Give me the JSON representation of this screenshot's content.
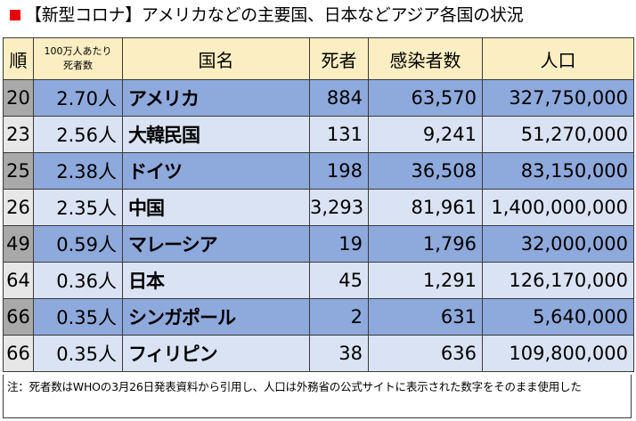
{
  "title": {
    "text": "【新型コロナ】アメリカなどの主要国、日本などアジア各国の状況",
    "marker_color": "#e8000b"
  },
  "table": {
    "headers": {
      "rank": "順",
      "per_million": "100万人あたり死者数",
      "per_million_line1": "100万人あたり",
      "per_million_line2": "死者数",
      "country": "国名",
      "deaths": "死者",
      "infections": "感染者数",
      "population": "人口"
    },
    "rows": [
      {
        "rank": "20",
        "per_million": "2.70人",
        "country": "アメリカ",
        "deaths": "884",
        "infections": "63,570",
        "population": "327,750,000"
      },
      {
        "rank": "23",
        "per_million": "2.56人",
        "country": "大韓民国",
        "deaths": "131",
        "infections": "9,241",
        "population": "51,270,000"
      },
      {
        "rank": "25",
        "per_million": "2.38人",
        "country": "ドイツ",
        "deaths": "198",
        "infections": "36,508",
        "population": "83,150,000"
      },
      {
        "rank": "26",
        "per_million": "2.35人",
        "country": "中国",
        "deaths": "3,293",
        "infections": "81,961",
        "population": "1,400,000,000"
      },
      {
        "rank": "49",
        "per_million": "0.59人",
        "country": "マレーシア",
        "deaths": "19",
        "infections": "1,796",
        "population": "32,000,000"
      },
      {
        "rank": "64",
        "per_million": "0.36人",
        "country": "日本",
        "deaths": "45",
        "infections": "1,291",
        "population": "126,170,000"
      },
      {
        "rank": "66",
        "per_million": "0.35人",
        "country": "シンガポール",
        "deaths": "2",
        "infections": "631",
        "population": "5,640,000"
      },
      {
        "rank": "66",
        "per_million": "0.35人",
        "country": "フィリピン",
        "deaths": "38",
        "infections": "636",
        "population": "109,800,000"
      }
    ]
  },
  "note": "注：死者数はWHOの3月26日発表資料から引用し、人口は外務省の公式サイトに表示された数字をそのまま使用した",
  "colors": {
    "header_bg": "#fbeec2",
    "row_dark": "#8ea9db",
    "row_light": "#dae3f3",
    "rank_dark": "#a9a9a9",
    "rank_light": "#e7e7e7"
  }
}
